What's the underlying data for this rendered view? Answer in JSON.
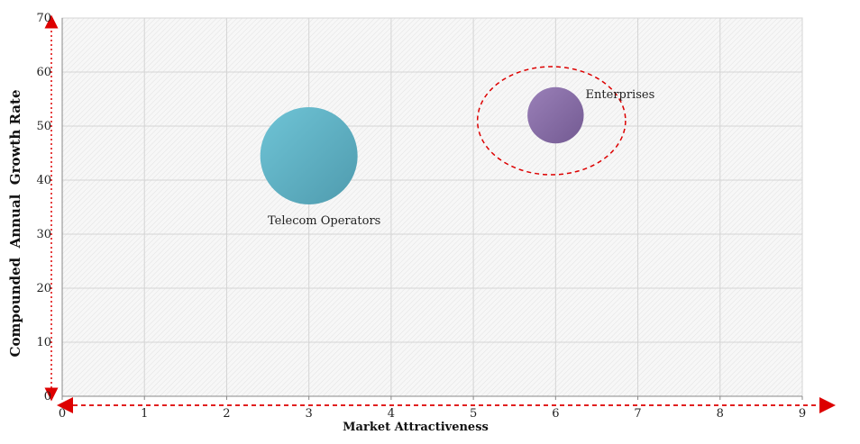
{
  "chart_data": {
    "type": "bubble",
    "xlabel": "Market Attractiveness",
    "ylabel": "Compounded  Annual  Growth Rate",
    "xlim": [
      0,
      9
    ],
    "ylim": [
      0,
      70
    ],
    "x_ticks": [
      "0",
      "1",
      "2",
      "3",
      "4",
      "5",
      "6",
      "7",
      "8",
      "9"
    ],
    "y_ticks": [
      "0",
      "10",
      "20",
      "30",
      "40",
      "50",
      "60",
      "70"
    ],
    "grid": true,
    "series": [
      {
        "name": "Telecom Operators",
        "x": 3.0,
        "y": 44.5,
        "size": 9.0,
        "color": "#5fb3c7"
      },
      {
        "name": "Enterprises",
        "x": 6.0,
        "y": 52.0,
        "size": 5.2,
        "color": "#8a6fa8"
      }
    ],
    "highlight": {
      "x": 5.95,
      "y": 51.0,
      "rx": 0.9,
      "ry": 10.0,
      "color": "#dd0000"
    },
    "axis_arrow_color": "#dd0000",
    "grid_color": "#d4d4d4"
  }
}
